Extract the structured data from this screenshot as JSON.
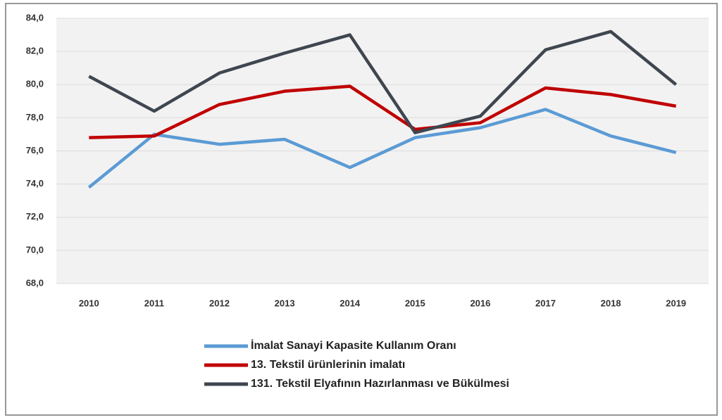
{
  "chart_data": {
    "type": "line",
    "categories": [
      "2010",
      "2011",
      "2012",
      "2013",
      "2014",
      "2015",
      "2016",
      "2017",
      "2018",
      "2019"
    ],
    "series": [
      {
        "name": "İmalat Sanayi Kapasite Kullanım Oranı",
        "color": "#5b9bd5",
        "values": [
          73.8,
          77.0,
          76.4,
          76.7,
          75.0,
          76.8,
          77.4,
          78.5,
          76.9,
          75.9
        ]
      },
      {
        "name": "13. Tekstil ürünlerinin imalatı",
        "color": "#c00000",
        "values": [
          76.8,
          76.9,
          78.8,
          79.6,
          79.9,
          77.3,
          77.7,
          79.8,
          79.4,
          78.7
        ]
      },
      {
        "name": "131. Tekstil Elyafının Hazırlanması ve Bükülmesi",
        "color": "#3f4650",
        "values": [
          80.5,
          78.4,
          80.7,
          81.9,
          83.0,
          77.1,
          78.1,
          82.1,
          83.2,
          80.0
        ]
      }
    ],
    "ylim": [
      68,
      84
    ],
    "yticks": [
      {
        "value": 68,
        "label": "68,0"
      },
      {
        "value": 70,
        "label": "70,0"
      },
      {
        "value": 72,
        "label": "72,0"
      },
      {
        "value": 74,
        "label": "74,0"
      },
      {
        "value": 76,
        "label": "76,0"
      },
      {
        "value": 78,
        "label": "78,0"
      },
      {
        "value": 80,
        "label": "80,0"
      },
      {
        "value": 82,
        "label": "82,0"
      },
      {
        "value": 84,
        "label": "84,0"
      }
    ],
    "grid": true
  }
}
